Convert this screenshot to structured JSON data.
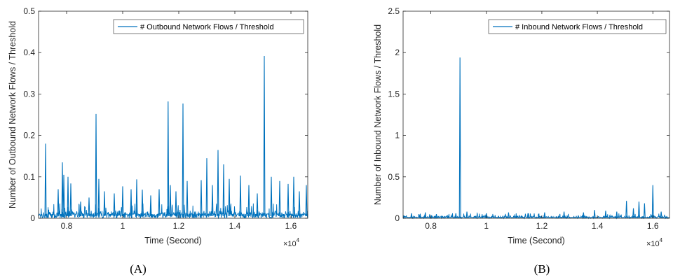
{
  "chart_data": [
    {
      "type": "line",
      "panel_label": "(A)",
      "xlabel": "Time (Second)",
      "ylabel": "Number of Outbound Network Flows / Threshold",
      "xlim": [
        7000,
        16600
      ],
      "ylim": [
        0,
        0.5
      ],
      "x_ticks": [
        8000,
        10000,
        12000,
        14000,
        16000
      ],
      "x_tick_labels": [
        "0.8",
        "1",
        "1.2",
        "1.4",
        "1.6"
      ],
      "x_multiplier_base": "×10",
      "x_multiplier_exp": "4",
      "y_ticks": [
        0,
        0.1,
        0.2,
        0.3,
        0.4,
        0.5
      ],
      "y_tick_labels": [
        "0",
        "0.1",
        "0.2",
        "0.3",
        "0.4",
        "0.5"
      ],
      "legend_position": "top-right",
      "color": "#0072BD",
      "series": [
        {
          "name": "# Outbound Network Flows / Threshold",
          "baseline": 0.02,
          "noise": 0.018,
          "peaks": [
            [
              7250,
              0.18
            ],
            [
              7700,
              0.07
            ],
            [
              7850,
              0.135
            ],
            [
              7900,
              0.105
            ],
            [
              8050,
              0.1
            ],
            [
              8150,
              0.084
            ],
            [
              8500,
              0.04
            ],
            [
              8800,
              0.05
            ],
            [
              9050,
              0.252
            ],
            [
              9150,
              0.095
            ],
            [
              9350,
              0.065
            ],
            [
              9700,
              0.06
            ],
            [
              10000,
              0.077
            ],
            [
              10300,
              0.07
            ],
            [
              10500,
              0.094
            ],
            [
              10700,
              0.069
            ],
            [
              11000,
              0.055
            ],
            [
              11300,
              0.07
            ],
            [
              11620,
              0.282
            ],
            [
              11700,
              0.08
            ],
            [
              11900,
              0.065
            ],
            [
              12150,
              0.277
            ],
            [
              12300,
              0.09
            ],
            [
              12800,
              0.092
            ],
            [
              13000,
              0.145
            ],
            [
              13200,
              0.08
            ],
            [
              13400,
              0.165
            ],
            [
              13600,
              0.13
            ],
            [
              13800,
              0.095
            ],
            [
              14200,
              0.103
            ],
            [
              14500,
              0.08
            ],
            [
              14800,
              0.06
            ],
            [
              15050,
              0.392
            ],
            [
              15300,
              0.1
            ],
            [
              15600,
              0.09
            ],
            [
              15900,
              0.083
            ],
            [
              16100,
              0.1
            ],
            [
              16300,
              0.065
            ],
            [
              16550,
              0.08
            ]
          ]
        }
      ]
    },
    {
      "type": "line",
      "panel_label": "(B)",
      "xlabel": "Time (Second)",
      "ylabel": "Number of Inbound Network Flows / Threshold",
      "xlim": [
        7000,
        16600
      ],
      "ylim": [
        0,
        2.5
      ],
      "x_ticks": [
        8000,
        10000,
        12000,
        14000,
        16000
      ],
      "x_tick_labels": [
        "0.8",
        "1",
        "1.2",
        "1.4",
        "1.6"
      ],
      "x_multiplier_base": "×10",
      "x_multiplier_exp": "4",
      "y_ticks": [
        0,
        0.5,
        1,
        1.5,
        2,
        2.5
      ],
      "y_tick_labels": [
        "0",
        "0.5",
        "1",
        "1.5",
        "2",
        "2.5"
      ],
      "legend_position": "top-right",
      "color": "#0072BD",
      "series": [
        {
          "name": "# Inbound Network Flows / Threshold",
          "baseline": 0.02,
          "noise": 0.03,
          "peaks": [
            [
              7300,
              0.06
            ],
            [
              7800,
              0.07
            ],
            [
              8200,
              0.05
            ],
            [
              8900,
              0.06
            ],
            [
              9050,
              1.94
            ],
            [
              9300,
              0.08
            ],
            [
              10000,
              0.06
            ],
            [
              10800,
              0.07
            ],
            [
              11500,
              0.06
            ],
            [
              12100,
              0.07
            ],
            [
              12800,
              0.08
            ],
            [
              13500,
              0.07
            ],
            [
              13900,
              0.1
            ],
            [
              14300,
              0.09
            ],
            [
              14700,
              0.08
            ],
            [
              15050,
              0.21
            ],
            [
              15300,
              0.12
            ],
            [
              15500,
              0.2
            ],
            [
              15700,
              0.18
            ],
            [
              16000,
              0.4
            ],
            [
              16300,
              0.08
            ]
          ]
        }
      ]
    }
  ]
}
